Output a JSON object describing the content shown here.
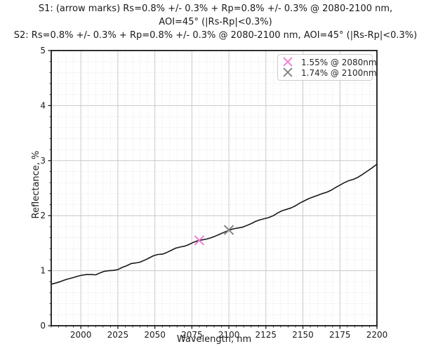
{
  "chart_data": {
    "type": "line",
    "title_lines": [
      "S1:  (arrow marks) Rs=0.8% +/- 0.3% + Rp=0.8% +/- 0.3% @ 2080-2100 nm,",
      "AOI=45° (|Rs-Rp|<0.3%)",
      "S2: Rs=0.8% +/- 0.3% + Rp=0.8% +/- 0.3% @ 2080-2100 nm, AOI=45° (|Rs-Rp|<0.3%)"
    ],
    "xlabel": "Wavelength, nm",
    "ylabel": "Reflectance, %",
    "xlim": [
      1980,
      2200
    ],
    "ylim": [
      0,
      5
    ],
    "x_ticks": [
      2000,
      2025,
      2050,
      2075,
      2100,
      2125,
      2150,
      2175,
      2200
    ],
    "y_ticks": [
      0,
      1,
      2,
      3,
      4,
      5
    ],
    "x_minor_step": 5,
    "y_minor_step": 0.2,
    "grid": true,
    "legend_position": "upper right",
    "colors": {
      "line": "#1a1a1a",
      "major_grid": "#c8c8c8",
      "minor_grid": "#dcdcdc",
      "spine": "#1a1a1a",
      "tick": "#1a1a1a"
    },
    "series": [
      {
        "name": "reflectance",
        "points": [
          [
            1980,
            0.755
          ],
          [
            1983,
            0.775
          ],
          [
            1986,
            0.8
          ],
          [
            1989,
            0.83
          ],
          [
            1992,
            0.855
          ],
          [
            1995,
            0.875
          ],
          [
            1998,
            0.9
          ],
          [
            2001,
            0.92
          ],
          [
            2004,
            0.93
          ],
          [
            2007,
            0.93
          ],
          [
            2010,
            0.925
          ],
          [
            2013,
            0.96
          ],
          [
            2016,
            0.99
          ],
          [
            2019,
            1.0
          ],
          [
            2022,
            1.005
          ],
          [
            2025,
            1.02
          ],
          [
            2028,
            1.06
          ],
          [
            2031,
            1.09
          ],
          [
            2034,
            1.13
          ],
          [
            2037,
            1.14
          ],
          [
            2040,
            1.155
          ],
          [
            2043,
            1.19
          ],
          [
            2046,
            1.23
          ],
          [
            2049,
            1.27
          ],
          [
            2052,
            1.295
          ],
          [
            2055,
            1.3
          ],
          [
            2058,
            1.33
          ],
          [
            2061,
            1.37
          ],
          [
            2064,
            1.41
          ],
          [
            2067,
            1.43
          ],
          [
            2070,
            1.445
          ],
          [
            2073,
            1.475
          ],
          [
            2076,
            1.515
          ],
          [
            2079,
            1.545
          ],
          [
            2082,
            1.56
          ],
          [
            2085,
            1.575
          ],
          [
            2088,
            1.6
          ],
          [
            2091,
            1.63
          ],
          [
            2094,
            1.665
          ],
          [
            2097,
            1.7
          ],
          [
            2100,
            1.735
          ],
          [
            2103,
            1.76
          ],
          [
            2106,
            1.775
          ],
          [
            2109,
            1.79
          ],
          [
            2112,
            1.82
          ],
          [
            2115,
            1.855
          ],
          [
            2118,
            1.895
          ],
          [
            2121,
            1.925
          ],
          [
            2124,
            1.945
          ],
          [
            2127,
            1.965
          ],
          [
            2130,
            2.0
          ],
          [
            2133,
            2.05
          ],
          [
            2136,
            2.09
          ],
          [
            2139,
            2.115
          ],
          [
            2142,
            2.14
          ],
          [
            2145,
            2.18
          ],
          [
            2148,
            2.23
          ],
          [
            2151,
            2.27
          ],
          [
            2154,
            2.31
          ],
          [
            2157,
            2.34
          ],
          [
            2160,
            2.37
          ],
          [
            2163,
            2.4
          ],
          [
            2166,
            2.425
          ],
          [
            2169,
            2.46
          ],
          [
            2172,
            2.51
          ],
          [
            2175,
            2.555
          ],
          [
            2178,
            2.6
          ],
          [
            2181,
            2.635
          ],
          [
            2184,
            2.66
          ],
          [
            2187,
            2.695
          ],
          [
            2190,
            2.745
          ],
          [
            2193,
            2.8
          ],
          [
            2196,
            2.855
          ],
          [
            2199,
            2.915
          ],
          [
            2200,
            2.935
          ]
        ]
      }
    ],
    "markers": [
      {
        "x": 2080,
        "y": 1.55,
        "label": "1.55% @ 2080nm",
        "color": "#ec7ad3"
      },
      {
        "x": 2100,
        "y": 1.74,
        "label": "1.74% @ 2100nm",
        "color": "#7f7f7f"
      }
    ]
  }
}
